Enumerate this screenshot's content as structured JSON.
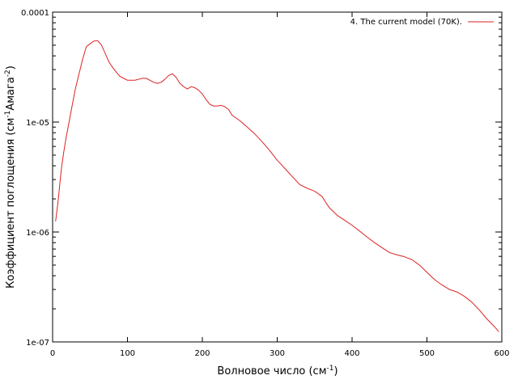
{
  "chart_data": {
    "type": "line",
    "xlabel_main": "Волновое число (см",
    "xlabel_sup": "-1",
    "xlabel_end": ")",
    "ylabel_main": "Коэффициент поглощения (см",
    "ylabel_sup1": "-1",
    "ylabel_mid": "Амага",
    "ylabel_sup2": "-2",
    "ylabel_end": ")",
    "xlim": [
      0,
      600
    ],
    "ylim": [
      1e-07,
      0.0001
    ],
    "yscale": "log",
    "grid": false,
    "legend_position": "top-right",
    "x_ticks": [
      0,
      100,
      200,
      300,
      400,
      500,
      600
    ],
    "x_tick_labels": [
      "0",
      "100",
      "200",
      "300",
      "400",
      "500",
      "600"
    ],
    "y_ticks": [
      1e-07,
      1e-06,
      1e-05,
      0.0001
    ],
    "y_tick_labels": [
      "1e-07",
      "1e-06",
      "1e-05",
      "0.0001"
    ],
    "series": [
      {
        "name": "4. The current model (70K).",
        "color": "#dd2222",
        "x": [
          4,
          6,
          8,
          10,
          12,
          15,
          18,
          22,
          26,
          30,
          35,
          40,
          45,
          50,
          55,
          60,
          65,
          70,
          75,
          80,
          85,
          90,
          95,
          100,
          105,
          110,
          115,
          120,
          125,
          130,
          135,
          140,
          145,
          150,
          155,
          160,
          165,
          170,
          175,
          180,
          185,
          190,
          195,
          200,
          205,
          210,
          215,
          220,
          225,
          230,
          235,
          240,
          250,
          260,
          270,
          280,
          290,
          300,
          310,
          320,
          330,
          340,
          350,
          360,
          365,
          370,
          380,
          390,
          400,
          410,
          420,
          430,
          440,
          450,
          460,
          470,
          480,
          490,
          500,
          510,
          520,
          530,
          540,
          550,
          560,
          570,
          580,
          590,
          596
        ],
        "y": [
          1.25e-06,
          1.6e-06,
          2.1e-06,
          2.9e-06,
          3.9e-06,
          5.4e-06,
          7.2e-06,
          1e-05,
          1.4e-05,
          1.95e-05,
          2.7e-05,
          3.7e-05,
          4.85e-05,
          5.15e-05,
          5.45e-05,
          5.5e-05,
          5.05e-05,
          4.25e-05,
          3.55e-05,
          3.15e-05,
          2.85e-05,
          2.6e-05,
          2.5e-05,
          2.4e-05,
          2.4e-05,
          2.4e-05,
          2.45e-05,
          2.5e-05,
          2.5e-05,
          2.4e-05,
          2.3e-05,
          2.25e-05,
          2.3e-05,
          2.45e-05,
          2.65e-05,
          2.75e-05,
          2.55e-05,
          2.25e-05,
          2.1e-05,
          2e-05,
          2.1e-05,
          2.05e-05,
          1.95e-05,
          1.8e-05,
          1.6e-05,
          1.45e-05,
          1.4e-05,
          1.4e-05,
          1.42e-05,
          1.38e-05,
          1.3e-05,
          1.15e-05,
          1.03e-05,
          9e-06,
          7.8e-06,
          6.6e-06,
          5.5e-06,
          4.5e-06,
          3.8e-06,
          3.2e-06,
          2.7e-06,
          2.5e-06,
          2.35e-06,
          2.1e-06,
          1.85e-06,
          1.65e-06,
          1.42e-06,
          1.28e-06,
          1.15e-06,
          1.02e-06,
          9e-07,
          8e-07,
          7.2e-07,
          6.5e-07,
          6.2e-07,
          5.95e-07,
          5.6e-07,
          5e-07,
          4.3e-07,
          3.7e-07,
          3.3e-07,
          3e-07,
          2.85e-07,
          2.6e-07,
          2.3e-07,
          1.95e-07,
          1.62e-07,
          1.38e-07,
          1.24e-07
        ]
      }
    ]
  }
}
